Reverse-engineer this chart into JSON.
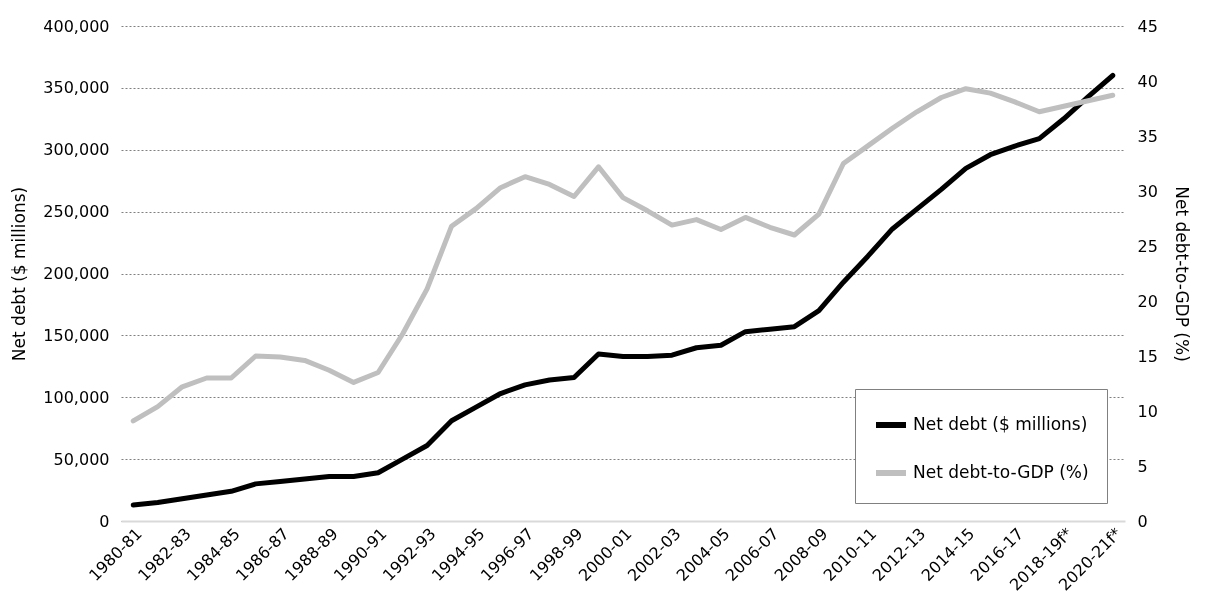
{
  "chart_data": {
    "type": "line",
    "categories": [
      "1980-81",
      null,
      "1982-83",
      null,
      "1984-85",
      null,
      "1986-87",
      null,
      "1988-89",
      null,
      "1990-91",
      null,
      "1992-93",
      null,
      "1994-95",
      null,
      "1996-97",
      null,
      "1998-99",
      null,
      "2000-01",
      null,
      "2002-03",
      null,
      "2004-05",
      null,
      "2006-07",
      null,
      "2008-09",
      null,
      "2010-11",
      null,
      "2012-13",
      null,
      "2014-15",
      null,
      "2016-17",
      null,
      "2018-19f*",
      null,
      "2020-21f*"
    ],
    "series": [
      {
        "name": "Net debt ($ millions)",
        "color": "#000000",
        "values": [
          13000,
          15000,
          18000,
          21000,
          24000,
          30000,
          32000,
          34000,
          36000,
          36000,
          39000,
          50000,
          61000,
          81000,
          92000,
          103000,
          110000,
          114000,
          116000,
          135000,
          133000,
          133000,
          134000,
          140000,
          142000,
          153000,
          155000,
          157000,
          170000,
          193000,
          214000,
          236000,
          252000,
          268000,
          285000,
          296000,
          303000,
          309000,
          325000,
          343000,
          360000
        ]
      },
      {
        "name": "Net debt-to-GDP (%)",
        "color": "#bfbfbf",
        "axis": "y2",
        "values": [
          9.1,
          10.4,
          12.2,
          13.0,
          13.0,
          15.0,
          14.9,
          14.6,
          13.7,
          12.6,
          13.5,
          17.0,
          21.1,
          26.8,
          28.4,
          30.3,
          31.3,
          30.6,
          29.5,
          32.2,
          29.4,
          28.2,
          26.9,
          27.4,
          26.5,
          27.6,
          26.7,
          26.0,
          27.9,
          32.5,
          34.1,
          35.7,
          37.2,
          38.5,
          39.3,
          38.9,
          38.1,
          37.2,
          37.7,
          38.2,
          38.7
        ]
      }
    ],
    "ylabel": "Net debt ($ millions)",
    "y2label": "Net debt-to-GDP (%)",
    "ylim": [
      0,
      400000
    ],
    "yticks": [
      0,
      {
        "value": 50000,
        "label": "50,000"
      },
      {
        "value": 100000,
        "label": "100,000"
      },
      {
        "value": 150000,
        "label": "150,000"
      },
      {
        "value": 200000,
        "label": "200,000"
      },
      {
        "value": 250000,
        "label": "250,000"
      },
      {
        "value": 300000,
        "label": "300,000"
      },
      {
        "value": 350000,
        "label": "350,000"
      },
      {
        "value": 400000,
        "label": "400,000"
      }
    ],
    "y2lim": [
      0,
      45
    ],
    "y2ticks": [
      0,
      5,
      10,
      15,
      20,
      25,
      30,
      35,
      40,
      45
    ],
    "grid": "y",
    "legend": "bottom right",
    "marker": "none",
    "line_style": "solid"
  }
}
